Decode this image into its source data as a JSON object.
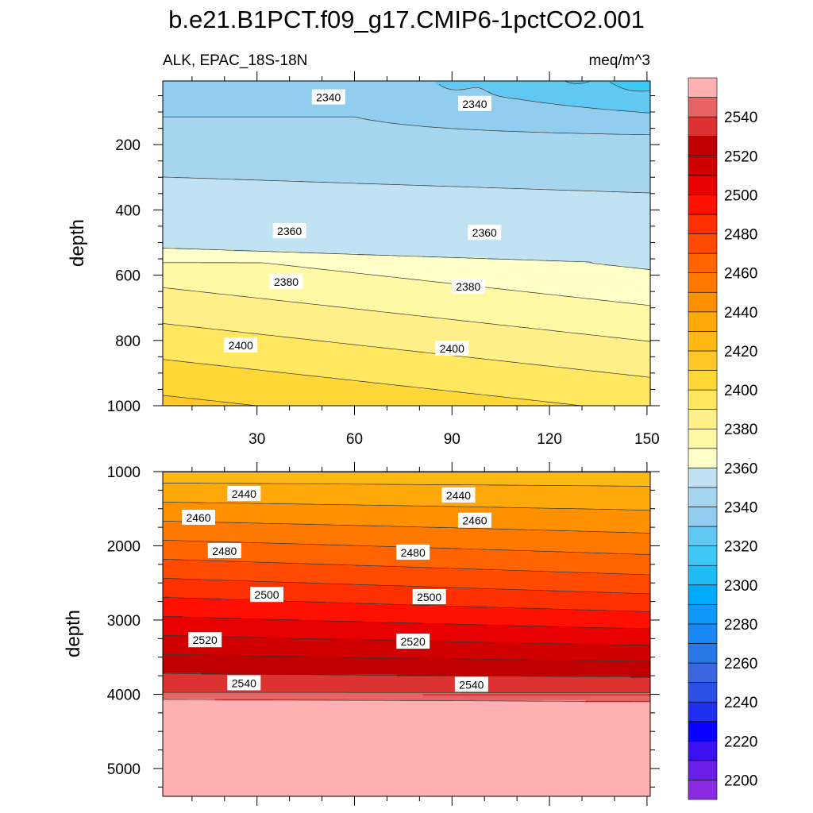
{
  "title": "b.e21.B1PCT.f09_g17.CMIP6-1pctCO2.001",
  "subtitle_left": "ALK, EPAC_18S-18N",
  "subtitle_right": "meq/m^3",
  "chart_data": [
    {
      "type": "contour",
      "panel": "upper",
      "ylabel": "depth",
      "xlabel": "",
      "xlim": [
        1,
        151
      ],
      "ylim": [
        1000,
        5
      ],
      "xticks": [
        30,
        60,
        90,
        120,
        150
      ],
      "xtick_labels": [
        "30",
        "60",
        "90",
        "120",
        "150"
      ],
      "yticks": [
        200,
        400,
        600,
        800,
        1000
      ],
      "ytick_labels": [
        "200",
        "400",
        "600",
        "800",
        "1000"
      ],
      "contour_labels": [
        {
          "text": "2340",
          "x": 52,
          "depth": 55
        },
        {
          "text": "2340",
          "x": 97,
          "depth": 75
        },
        {
          "text": "2360",
          "x": 40,
          "depth": 465
        },
        {
          "text": "2360",
          "x": 100,
          "depth": 470
        },
        {
          "text": "2380",
          "x": 39,
          "depth": 620
        },
        {
          "text": "2380",
          "x": 95,
          "depth": 635
        },
        {
          "text": "2400",
          "x": 25,
          "depth": 815
        },
        {
          "text": "2400",
          "x": 90,
          "depth": 825
        }
      ]
    },
    {
      "type": "contour",
      "panel": "lower",
      "ylabel": "depth",
      "xlabel": "",
      "xlim": [
        1,
        151
      ],
      "ylim": [
        5375,
        1000
      ],
      "xticks": [
        30,
        60,
        90,
        120,
        150
      ],
      "yticks": [
        1000,
        2000,
        3000,
        4000,
        5000
      ],
      "ytick_labels": [
        "1000",
        "2000",
        "3000",
        "4000",
        "5000"
      ],
      "contour_labels": [
        {
          "text": "2440",
          "x": 26,
          "depth": 1300
        },
        {
          "text": "2440",
          "x": 92,
          "depth": 1320
        },
        {
          "text": "2460",
          "x": 12,
          "depth": 1620
        },
        {
          "text": "2460",
          "x": 97,
          "depth": 1660
        },
        {
          "text": "2480",
          "x": 20,
          "depth": 2070
        },
        {
          "text": "2480",
          "x": 78,
          "depth": 2090
        },
        {
          "text": "2500",
          "x": 33,
          "depth": 2660
        },
        {
          "text": "2500",
          "x": 83,
          "depth": 2690
        },
        {
          "text": "2520",
          "x": 14,
          "depth": 3270
        },
        {
          "text": "2520",
          "x": 78,
          "depth": 3290
        },
        {
          "text": "2540",
          "x": 26,
          "depth": 3850
        },
        {
          "text": "2540",
          "x": 96,
          "depth": 3870
        }
      ]
    }
  ],
  "colorbar": {
    "levels": [
      2200,
      2210,
      2220,
      2230,
      2240,
      2250,
      2260,
      2270,
      2280,
      2290,
      2300,
      2310,
      2320,
      2330,
      2340,
      2350,
      2360,
      2370,
      2380,
      2390,
      2400,
      2410,
      2420,
      2430,
      2440,
      2450,
      2460,
      2470,
      2480,
      2490,
      2500,
      2510,
      2520,
      2530,
      2540,
      2550
    ],
    "labels": [
      "2200",
      "2220",
      "2240",
      "2260",
      "2280",
      "2300",
      "2320",
      "2340",
      "2360",
      "2380",
      "2400",
      "2420",
      "2440",
      "2460",
      "2480",
      "2500",
      "2520",
      "2540"
    ],
    "colors": [
      "#8a2be2",
      "#6a1ee8",
      "#3a10f0",
      "#0a00ff",
      "#2030ee",
      "#2a50e6",
      "#3a66e0",
      "#2a78e8",
      "#1a88f2",
      "#1098f8",
      "#00aaff",
      "#20bcf8",
      "#40c8f5",
      "#60c8f2",
      "#90cdee",
      "#a6d6ef",
      "#c0e2f2",
      "#ffffc8",
      "#fff9a6",
      "#fff08a",
      "#ffe860",
      "#ffd838",
      "#ffc828",
      "#ffb814",
      "#ffa80a",
      "#ff9000",
      "#ff7800",
      "#ff6400",
      "#ff4a00",
      "#ff3000",
      "#ff1000",
      "#e80000",
      "#d00000",
      "#c00000",
      "#dc3232",
      "#e86464",
      "#ffb0b0"
    ]
  }
}
